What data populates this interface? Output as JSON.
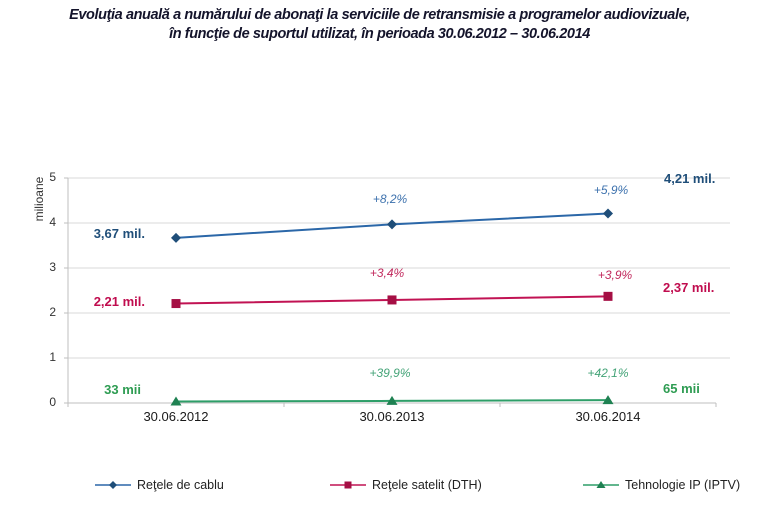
{
  "page": {
    "title_line1": "Evoluţia anuală a numărului de abonaţi la serviciile de retransmisie a programelor audiovizuale,",
    "title_line2": "în funcţie de suportul utilizat, în perioada 30.06.2012 – 30.06.2014"
  },
  "chart_data": {
    "type": "line",
    "title": "Evoluţia anuală a numărului de abonaţi la serviciile de retransmisie a programelor audiovizuale, în funcţie de suportul utilizat, în perioada 30.06.2012 – 30.06.2014",
    "ylabel": "milioane",
    "ylim": [
      0,
      5
    ],
    "yticks": [
      0,
      1,
      2,
      3,
      4,
      5
    ],
    "ytick_labels": [
      "0",
      "1",
      "2",
      "3",
      "4",
      "5"
    ],
    "categories": [
      "30.06.2012",
      "30.06.2013",
      "30.06.2014"
    ],
    "grid": true,
    "legend_position": "bottom",
    "colors": {
      "grid": "#D9D9D9",
      "axis": "#BFBFBF",
      "tick_text": "#333333",
      "xlabel_text": "#1A1A1A",
      "title": "#14142B"
    },
    "series": [
      {
        "name": "Reţele de cablu",
        "marker": "diamond",
        "color": "#2B67A8",
        "marker_color": "#1F4E79",
        "label_color": "#1F4E79",
        "pct_color": "#3C71AD",
        "values": [
          3.67,
          3.97,
          4.21
        ],
        "start_label": "3,67 mil.",
        "end_label": "4,21 mil.",
        "pct_labels": [
          "+8,2%",
          "+5,9%"
        ]
      },
      {
        "name": "Reţele satelit (DTH)",
        "marker": "square",
        "color": "#C11353",
        "marker_color": "#A50F44",
        "label_color": "#C00C4E",
        "pct_color": "#C1285C",
        "values": [
          2.21,
          2.29,
          2.37
        ],
        "start_label": "2,21 mil.",
        "end_label": "2,37 mil.",
        "pct_labels": [
          "+3,4%",
          "+3,9%"
        ]
      },
      {
        "name": "Tehnologie IP (IPTV)",
        "marker": "triangle",
        "color": "#2E9E68",
        "marker_color": "#1F8152",
        "label_color": "#2E9C52",
        "pct_color": "#43A377",
        "values": [
          0.033,
          0.046,
          0.065
        ],
        "start_label": "33 mii",
        "end_label": "65 mii",
        "pct_labels": [
          "+39,9%",
          "+42,1%"
        ]
      }
    ]
  }
}
